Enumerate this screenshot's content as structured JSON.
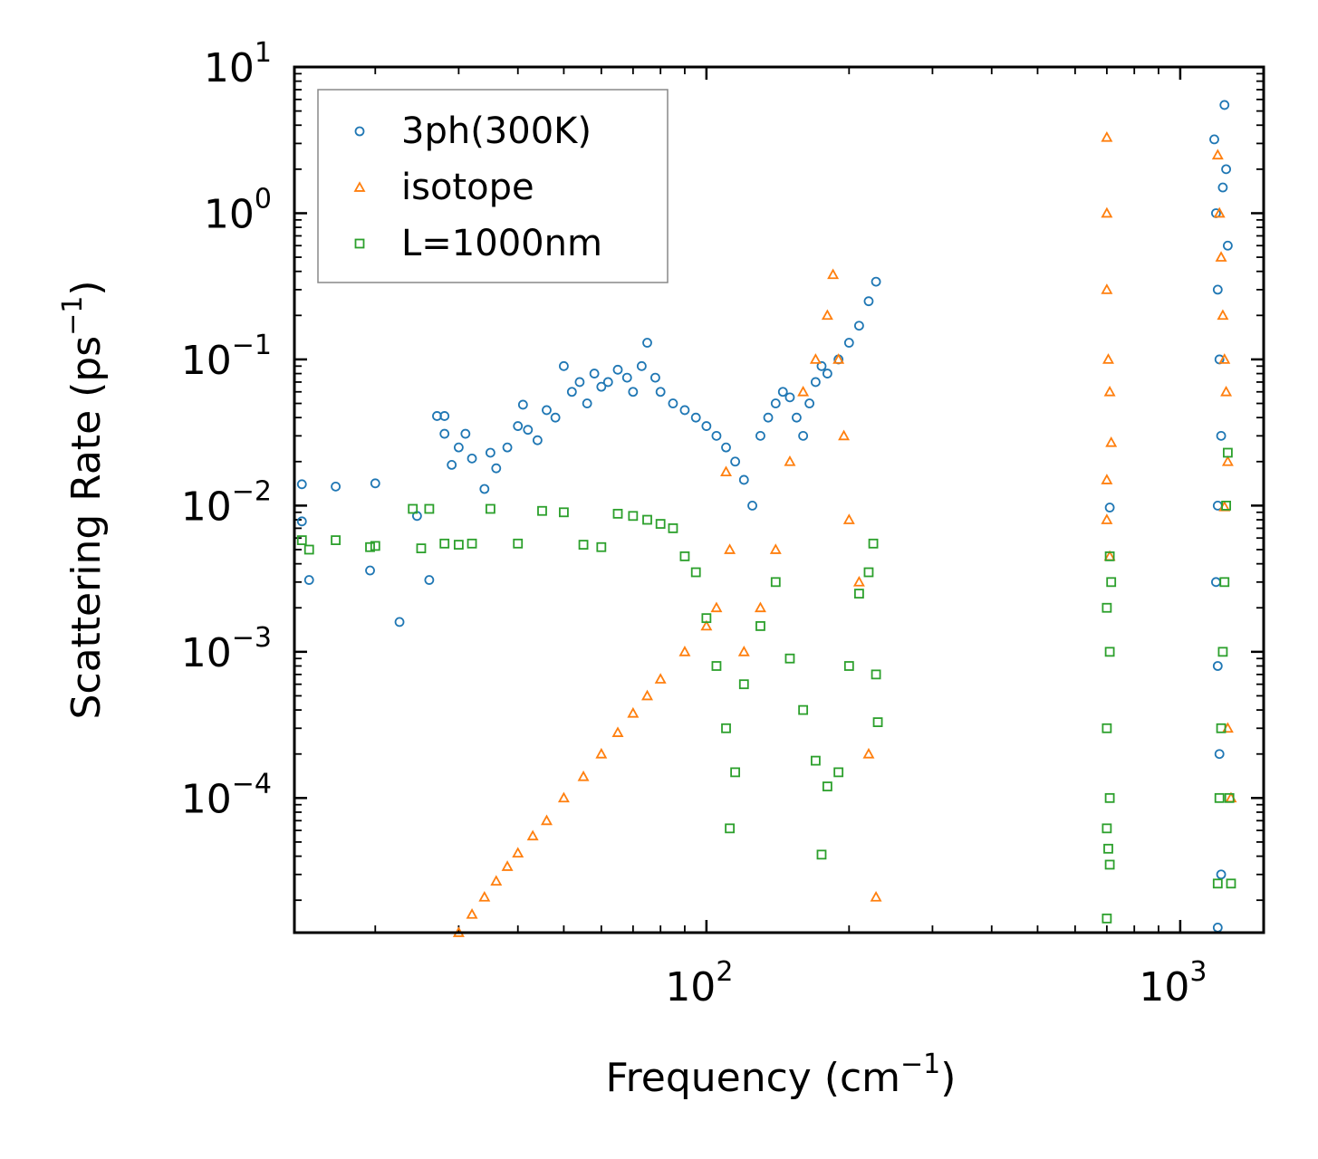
{
  "chart_data": {
    "type": "scatter",
    "title": "",
    "xlabel": {
      "main": "Frequency (cm",
      "sup": "−1",
      "tail": ")"
    },
    "ylabel": {
      "main": "Scattering Rate (ps",
      "sup": "−1",
      "tail": ")"
    },
    "xscale": "log",
    "yscale": "log",
    "xlim": [
      13.5,
      1500
    ],
    "ylim": [
      1.2e-05,
      10
    ],
    "grid": false,
    "legend_position": "top-left",
    "x_ticks": [
      {
        "value": 100,
        "base": "10",
        "exp": "2"
      },
      {
        "value": 1000,
        "base": "10",
        "exp": "3"
      }
    ],
    "y_ticks": [
      {
        "value": 10,
        "base": "10",
        "exp": "1"
      },
      {
        "value": 1,
        "base": "10",
        "exp": "0"
      },
      {
        "value": 0.1,
        "base": "10",
        "exp": "−1"
      },
      {
        "value": 0.01,
        "base": "10",
        "exp": "−2"
      },
      {
        "value": 0.001,
        "base": "10",
        "exp": "−3"
      },
      {
        "value": 0.0001,
        "base": "10",
        "exp": "−4"
      }
    ],
    "series": [
      {
        "name": "3ph(300K)",
        "marker": "circle",
        "color": "#1f77b4",
        "points": [
          [
            14,
            0.014
          ],
          [
            14,
            0.0078
          ],
          [
            14.5,
            0.0031
          ],
          [
            16.5,
            0.0135
          ],
          [
            19.5,
            0.0036
          ],
          [
            20,
            0.0142
          ],
          [
            22.5,
            0.0016
          ],
          [
            24.5,
            0.0085
          ],
          [
            26,
            0.0031
          ],
          [
            27,
            0.041
          ],
          [
            28,
            0.041
          ],
          [
            28,
            0.031
          ],
          [
            29,
            0.019
          ],
          [
            30,
            0.025
          ],
          [
            31,
            0.031
          ],
          [
            32,
            0.021
          ],
          [
            34,
            0.013
          ],
          [
            35,
            0.023
          ],
          [
            36,
            0.018
          ],
          [
            38,
            0.025
          ],
          [
            40,
            0.035
          ],
          [
            41,
            0.049
          ],
          [
            42,
            0.033
          ],
          [
            44,
            0.028
          ],
          [
            46,
            0.045
          ],
          [
            48,
            0.04
          ],
          [
            50,
            0.09
          ],
          [
            52,
            0.06
          ],
          [
            54,
            0.07
          ],
          [
            56,
            0.05
          ],
          [
            58,
            0.08
          ],
          [
            60,
            0.065
          ],
          [
            62,
            0.07
          ],
          [
            65,
            0.085
          ],
          [
            68,
            0.075
          ],
          [
            70,
            0.06
          ],
          [
            73,
            0.09
          ],
          [
            75,
            0.13
          ],
          [
            78,
            0.075
          ],
          [
            80,
            0.06
          ],
          [
            85,
            0.05
          ],
          [
            90,
            0.045
          ],
          [
            95,
            0.04
          ],
          [
            100,
            0.035
          ],
          [
            105,
            0.03
          ],
          [
            110,
            0.025
          ],
          [
            115,
            0.02
          ],
          [
            120,
            0.015
          ],
          [
            125,
            0.01
          ],
          [
            130,
            0.03
          ],
          [
            135,
            0.04
          ],
          [
            140,
            0.05
          ],
          [
            145,
            0.06
          ],
          [
            150,
            0.055
          ],
          [
            155,
            0.04
          ],
          [
            160,
            0.03
          ],
          [
            165,
            0.05
          ],
          [
            170,
            0.07
          ],
          [
            175,
            0.09
          ],
          [
            180,
            0.08
          ],
          [
            190,
            0.1
          ],
          [
            200,
            0.13
          ],
          [
            210,
            0.17
          ],
          [
            220,
            0.25
          ],
          [
            228,
            0.34
          ],
          [
            1180,
            3.2
          ],
          [
            1190,
            1.0
          ],
          [
            1200,
            0.3
          ],
          [
            1210,
            0.1
          ],
          [
            1220,
            0.03
          ],
          [
            1200,
            0.01
          ],
          [
            1190,
            0.003
          ],
          [
            1200,
            0.0008
          ],
          [
            1210,
            0.0002
          ],
          [
            1220,
            3e-05
          ],
          [
            1200,
            1.3e-05
          ],
          [
            1240,
            5.5
          ],
          [
            1250,
            2.0
          ],
          [
            1260,
            0.6
          ],
          [
            1230,
            1.5
          ],
          [
            710,
            0.0097
          ]
        ]
      },
      {
        "name": "isotope",
        "marker": "triangle",
        "color": "#ff7f0e",
        "points": [
          [
            30,
            1.2e-05
          ],
          [
            32,
            1.6e-05
          ],
          [
            34,
            2.1e-05
          ],
          [
            36,
            2.7e-05
          ],
          [
            38,
            3.4e-05
          ],
          [
            40,
            4.2e-05
          ],
          [
            43,
            5.5e-05
          ],
          [
            46,
            7e-05
          ],
          [
            50,
            0.0001
          ],
          [
            55,
            0.00014
          ],
          [
            60,
            0.0002
          ],
          [
            65,
            0.00028
          ],
          [
            70,
            0.00038
          ],
          [
            75,
            0.0005
          ],
          [
            80,
            0.00065
          ],
          [
            90,
            0.001
          ],
          [
            100,
            0.0015
          ],
          [
            105,
            0.002
          ],
          [
            110,
            0.017
          ],
          [
            112,
            0.005
          ],
          [
            120,
            0.001
          ],
          [
            130,
            0.002
          ],
          [
            140,
            0.005
          ],
          [
            150,
            0.02
          ],
          [
            160,
            0.06
          ],
          [
            170,
            0.1
          ],
          [
            180,
            0.2
          ],
          [
            185,
            0.38
          ],
          [
            190,
            0.1
          ],
          [
            195,
            0.03
          ],
          [
            200,
            0.008
          ],
          [
            210,
            0.003
          ],
          [
            220,
            0.0002
          ],
          [
            228,
            2.1e-05
          ],
          [
            700,
            3.3
          ],
          [
            700,
            1.0
          ],
          [
            700,
            0.3
          ],
          [
            705,
            0.1
          ],
          [
            710,
            0.06
          ],
          [
            715,
            0.027
          ],
          [
            700,
            0.015
          ],
          [
            700,
            0.008
          ],
          [
            710,
            0.0045
          ],
          [
            1200,
            2.5
          ],
          [
            1210,
            1.0
          ],
          [
            1220,
            0.5
          ],
          [
            1230,
            0.2
          ],
          [
            1240,
            0.1
          ],
          [
            1250,
            0.06
          ],
          [
            1260,
            0.02
          ],
          [
            1240,
            0.0098
          ],
          [
            1260,
            0.0003
          ],
          [
            1280,
            0.0001
          ]
        ]
      },
      {
        "name": "L=1000nm",
        "marker": "square",
        "color": "#2ca02c",
        "points": [
          [
            14,
            0.0058
          ],
          [
            14.5,
            0.005
          ],
          [
            16.5,
            0.0058
          ],
          [
            19.5,
            0.0052
          ],
          [
            20,
            0.0053
          ],
          [
            24,
            0.0095
          ],
          [
            25,
            0.0051
          ],
          [
            26,
            0.0095
          ],
          [
            28,
            0.0055
          ],
          [
            30,
            0.0054
          ],
          [
            32,
            0.0055
          ],
          [
            35,
            0.0095
          ],
          [
            40,
            0.0055
          ],
          [
            45,
            0.0092
          ],
          [
            50,
            0.009
          ],
          [
            55,
            0.0054
          ],
          [
            60,
            0.0052
          ],
          [
            65,
            0.0088
          ],
          [
            70,
            0.0085
          ],
          [
            75,
            0.008
          ],
          [
            80,
            0.0075
          ],
          [
            85,
            0.007
          ],
          [
            90,
            0.0045
          ],
          [
            95,
            0.0035
          ],
          [
            100,
            0.0017
          ],
          [
            105,
            0.0008
          ],
          [
            110,
            0.0003
          ],
          [
            112,
            6.2e-05
          ],
          [
            115,
            0.00015
          ],
          [
            120,
            0.0006
          ],
          [
            130,
            0.0015
          ],
          [
            140,
            0.003
          ],
          [
            150,
            0.0009
          ],
          [
            160,
            0.0004
          ],
          [
            170,
            0.00018
          ],
          [
            175,
            4.1e-05
          ],
          [
            180,
            0.00012
          ],
          [
            190,
            0.00015
          ],
          [
            200,
            0.0008
          ],
          [
            210,
            0.0025
          ],
          [
            220,
            0.0035
          ],
          [
            225,
            0.0055
          ],
          [
            228,
            0.0007
          ],
          [
            230,
            0.00033
          ],
          [
            700,
            6.2e-05
          ],
          [
            705,
            4.5e-05
          ],
          [
            710,
            3.5e-05
          ],
          [
            700,
            1.5e-05
          ],
          [
            710,
            0.0001
          ],
          [
            700,
            0.0003
          ],
          [
            710,
            0.001
          ],
          [
            700,
            0.002
          ],
          [
            715,
            0.003
          ],
          [
            710,
            0.0045
          ],
          [
            1200,
            2.6e-05
          ],
          [
            1210,
            0.0001
          ],
          [
            1220,
            0.0003
          ],
          [
            1230,
            0.001
          ],
          [
            1240,
            0.003
          ],
          [
            1250,
            0.01
          ],
          [
            1260,
            0.023
          ],
          [
            1280,
            2.6e-05
          ],
          [
            1270,
            0.0001
          ]
        ]
      }
    ]
  }
}
